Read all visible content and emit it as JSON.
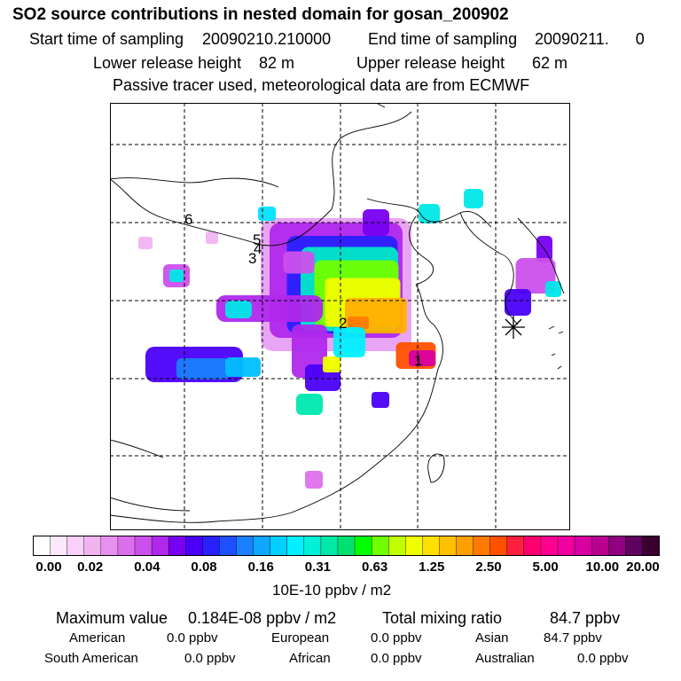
{
  "header": {
    "title": "SO2 source contributions in nested domain for gosan_200902",
    "start_label": "Start time of sampling",
    "start_value": "20090210.210000",
    "end_label": "End time of sampling",
    "end_value": "20090211.      0",
    "lower_label": "Lower release height",
    "lower_value": "82 m",
    "upper_label": "Upper release height",
    "upper_value": "62 m",
    "note": "Passive tracer used, meteorological data are from ECMWF"
  },
  "map": {
    "source_labels": [
      {
        "id": "1",
        "text": "1"
      },
      {
        "id": "2",
        "text": "2"
      },
      {
        "id": "3",
        "text": "3"
      },
      {
        "id": "4",
        "text": "4"
      },
      {
        "id": "5",
        "text": "5"
      },
      {
        "id": "6",
        "text": "6"
      }
    ],
    "receptor_marker": "asterisk-icon"
  },
  "colorbar": {
    "colors": [
      "#ffffff",
      "#fce8fc",
      "#f8d0f8",
      "#f0b4f0",
      "#e890f0",
      "#dc70ec",
      "#cc50ec",
      "#b028ec",
      "#7800f0",
      "#4a00f8",
      "#2a20ff",
      "#1e50ff",
      "#1a80ff",
      "#10a8ff",
      "#00d0ff",
      "#00f0ff",
      "#00f0d8",
      "#00e8a8",
      "#00e070",
      "#00ff00",
      "#70ff00",
      "#c0ff00",
      "#f0ff00",
      "#ffe000",
      "#ffc000",
      "#ffa000",
      "#ff7a00",
      "#ff5000",
      "#ff2040",
      "#ff0070",
      "#ff0090",
      "#f000a0",
      "#d800a0",
      "#b80090",
      "#900080",
      "#600060",
      "#3a0030"
    ],
    "tick_labels": [
      "0.00",
      "0.02",
      "0.04",
      "0.08",
      "0.16",
      "0.31",
      "0.63",
      "1.25",
      "2.50",
      "5.00",
      "10.00",
      "20.00"
    ],
    "units": "10E-10 ppbv / m2"
  },
  "footer": {
    "max_label": "Maximum value",
    "max_value": "0.184E-08 ppbv / m2",
    "total_label": "Total mixing ratio",
    "total_value": "84.7 ppbv",
    "regions": [
      {
        "name": "American",
        "value": "0.0 ppbv"
      },
      {
        "name": "European",
        "value": "0.0 ppbv"
      },
      {
        "name": "Asian",
        "value": "84.7 ppbv"
      },
      {
        "name": "South American",
        "value": "0.0 ppbv"
      },
      {
        "name": "African",
        "value": "0.0 ppbv"
      },
      {
        "name": "Australian",
        "value": "0.0 ppbv"
      }
    ]
  }
}
